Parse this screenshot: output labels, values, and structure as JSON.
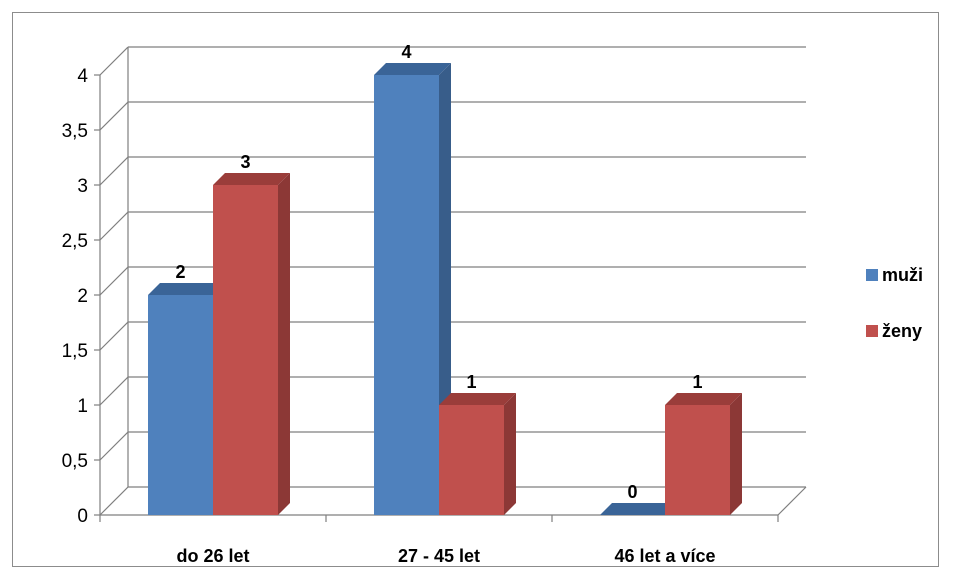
{
  "chart_data": {
    "type": "bar",
    "categories": [
      "do 26 let",
      "27 - 45 let",
      "46 let a více"
    ],
    "series": [
      {
        "name": "muži",
        "values": [
          2,
          4,
          0
        ],
        "color": "#4f81bd",
        "side_color": "#385d8a",
        "top_color": "#3a6497"
      },
      {
        "name": "ženy",
        "values": [
          3,
          1,
          1
        ],
        "color": "#c0504d",
        "side_color": "#8c3836",
        "top_color": "#9a3d3a"
      }
    ],
    "data_labels": [
      [
        "2",
        "4",
        "0"
      ],
      [
        "3",
        "1",
        "1"
      ]
    ],
    "y_ticks": [
      "0",
      "0,5",
      "1",
      "1,5",
      "2",
      "2,5",
      "3",
      "3,5",
      "4"
    ],
    "ylim": [
      0,
      4
    ],
    "title": "",
    "xlabel": "",
    "ylabel": "",
    "grid": true,
    "legend_position": "right",
    "style": "3d-clustered-column"
  }
}
